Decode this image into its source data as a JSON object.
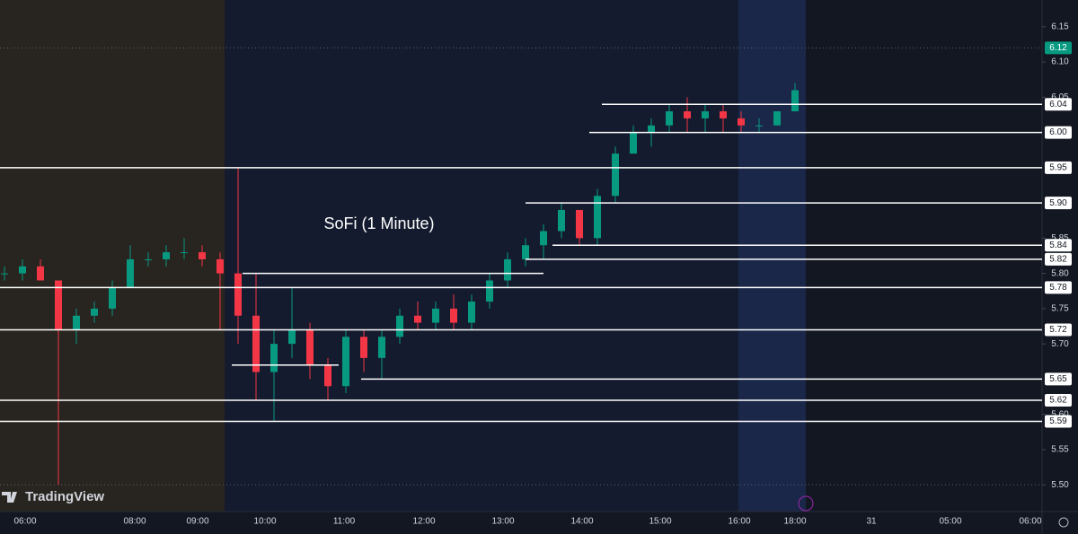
{
  "chart_data": {
    "type": "candlestick",
    "title": "SoFi (1 Minute)",
    "watermark": "TradingView",
    "ylim": [
      5.462,
      6.188
    ],
    "yticks": [
      6.15,
      {
        "value": 6.1,
        "label": "6.10"
      },
      6.05,
      5.85,
      {
        "value": 5.8,
        "label": "5.80"
      },
      5.75,
      {
        "value": 5.7,
        "label": "5.70"
      },
      {
        "value": 5.6,
        "label": "5.60"
      },
      5.55,
      {
        "value": 5.5,
        "label": "5.50"
      }
    ],
    "xticks": [
      "06:00",
      "08:00",
      "09:00",
      "10:00",
      "11:00",
      "12:00",
      "13:00",
      "14:00",
      "15:00",
      "16:00",
      "18:00",
      "31",
      "05:00",
      "06:00"
    ],
    "current_price": 6.12,
    "up_color": "#089981",
    "down_color": "#f23645",
    "level_color": "#ffffff",
    "levels": [
      5.95,
      {
        "value": 5.9,
        "label": "5.90"
      },
      5.84,
      5.82,
      {
        "value": 5.8
      },
      5.78,
      5.72,
      {
        "value": 5.67
      },
      5.65,
      5.62,
      5.59,
      6.04,
      {
        "value": 6.0,
        "label": "6.00"
      }
    ],
    "candles": [
      {
        "open": 5.8,
        "high": 5.81,
        "low": 5.79,
        "close": 5.8
      },
      {
        "open": 5.8,
        "high": 5.82,
        "low": 5.79,
        "close": 5.81
      },
      {
        "open": 5.81,
        "high": 5.82,
        "low": 5.79,
        "close": 5.79
      },
      {
        "open": 5.79,
        "high": 5.79,
        "low": 5.5,
        "close": 5.72
      },
      {
        "open": 5.72,
        "high": 5.75,
        "low": 5.7,
        "close": 5.74
      },
      {
        "open": 5.74,
        "high": 5.76,
        "low": 5.73,
        "close": 5.75
      },
      {
        "open": 5.75,
        "high": 5.79,
        "low": 5.74,
        "close": 5.78
      },
      {
        "open": 5.78,
        "high": 5.84,
        "low": 5.78,
        "close": 5.82
      },
      {
        "open": 5.82,
        "high": 5.83,
        "low": 5.81,
        "close": 5.82
      },
      {
        "open": 5.82,
        "high": 5.84,
        "low": 5.81,
        "close": 5.83
      },
      {
        "open": 5.83,
        "high": 5.85,
        "low": 5.82,
        "close": 5.83
      },
      {
        "open": 5.83,
        "high": 5.84,
        "low": 5.81,
        "close": 5.82
      },
      {
        "open": 5.82,
        "high": 5.83,
        "low": 5.72,
        "close": 5.8
      },
      {
        "open": 5.8,
        "high": 5.95,
        "low": 5.7,
        "close": 5.74
      },
      {
        "open": 5.74,
        "high": 5.8,
        "low": 5.62,
        "close": 5.66
      },
      {
        "open": 5.66,
        "high": 5.72,
        "low": 5.59,
        "close": 5.7
      },
      {
        "open": 5.7,
        "high": 5.78,
        "low": 5.68,
        "close": 5.72
      },
      {
        "open": 5.72,
        "high": 5.73,
        "low": 5.65,
        "close": 5.67
      },
      {
        "open": 5.67,
        "high": 5.68,
        "low": 5.62,
        "close": 5.64
      },
      {
        "open": 5.64,
        "high": 5.72,
        "low": 5.63,
        "close": 5.71
      },
      {
        "open": 5.71,
        "high": 5.72,
        "low": 5.66,
        "close": 5.68
      },
      {
        "open": 5.68,
        "high": 5.72,
        "low": 5.65,
        "close": 5.71
      },
      {
        "open": 5.71,
        "high": 5.75,
        "low": 5.7,
        "close": 5.74
      },
      {
        "open": 5.74,
        "high": 5.76,
        "low": 5.72,
        "close": 5.73
      },
      {
        "open": 5.73,
        "high": 5.76,
        "low": 5.72,
        "close": 5.75
      },
      {
        "open": 5.75,
        "high": 5.77,
        "low": 5.72,
        "close": 5.73
      },
      {
        "open": 5.73,
        "high": 5.77,
        "low": 5.72,
        "close": 5.76
      },
      {
        "open": 5.76,
        "high": 5.8,
        "low": 5.75,
        "close": 5.79
      },
      {
        "open": 5.79,
        "high": 5.83,
        "low": 5.78,
        "close": 5.82
      },
      {
        "open": 5.82,
        "high": 5.85,
        "low": 5.81,
        "close": 5.84
      },
      {
        "open": 5.84,
        "high": 5.87,
        "low": 5.82,
        "close": 5.86
      },
      {
        "open": 5.86,
        "high": 5.9,
        "low": 5.85,
        "close": 5.89
      },
      {
        "open": 5.89,
        "high": 5.89,
        "low": 5.84,
        "close": 5.85
      },
      {
        "open": 5.85,
        "high": 5.92,
        "low": 5.84,
        "close": 5.91
      },
      {
        "open": 5.91,
        "high": 5.98,
        "low": 5.9,
        "close": 5.97
      },
      {
        "open": 5.97,
        "high": 6.01,
        "low": 5.97,
        "close": 6.0
      },
      {
        "open": 6.0,
        "high": 6.02,
        "low": 5.98,
        "close": 6.01
      },
      {
        "open": 6.01,
        "high": 6.04,
        "low": 6.0,
        "close": 6.03
      },
      {
        "open": 6.03,
        "high": 6.05,
        "low": 6.0,
        "close": 6.02
      },
      {
        "open": 6.02,
        "high": 6.04,
        "low": 6.0,
        "close": 6.03
      },
      {
        "open": 6.03,
        "high": 6.04,
        "low": 6.0,
        "close": 6.02
      },
      {
        "open": 6.02,
        "high": 6.03,
        "low": 6.0,
        "close": 6.01
      },
      {
        "open": 6.01,
        "high": 6.02,
        "low": 6.0,
        "close": 6.01
      },
      {
        "open": 6.01,
        "high": 6.03,
        "low": 6.01,
        "close": 6.03
      },
      {
        "open": 6.03,
        "high": 6.07,
        "low": 6.03,
        "close": 6.06
      }
    ]
  }
}
